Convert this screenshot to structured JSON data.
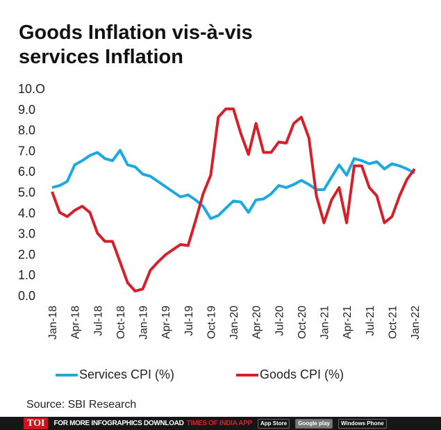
{
  "title": "Goods Inflation vis-à-vis services Inflation",
  "source": "Source: SBI Research",
  "footer": {
    "logo": "TOI",
    "text": "FOR MORE  INFOGRAPHICS DOWNLOAD",
    "app": "TIMES OF INDIA  APP",
    "badges": [
      "App Store",
      "Google play",
      "Windows Phone"
    ]
  },
  "chart_data": {
    "type": "line",
    "title": "Goods Inflation vis-à-vis services Inflation",
    "ylim": [
      0,
      10
    ],
    "yticks": [
      "0.0",
      "1.0",
      "2.0",
      "3.0",
      "4.0",
      "5.0",
      "6.0",
      "7.0",
      "8.0",
      "9.0",
      "10.O"
    ],
    "xtick_labels": [
      "Jan-18",
      "Apr-18",
      "Jul-18",
      "Oct-18",
      "Jan-19",
      "Apr-19",
      "Jul-19",
      "Oct-19",
      "Jan-20",
      "Apr-20",
      "Jul-20",
      "Oct-20",
      "Jan-21",
      "Apr-21",
      "Jul-21",
      "Oct-21",
      "Jan-22"
    ],
    "x_range": [
      "Jan-18",
      "Jan-22"
    ],
    "grid": false,
    "legend": "bottom",
    "colors": {
      "services": "#1ba9e1",
      "goods": "#d71f2a"
    },
    "series": [
      {
        "name": "Services CPI (%)",
        "values": [
          5.2,
          5.3,
          5.5,
          6.3,
          6.5,
          6.75,
          6.9,
          6.6,
          6.5,
          7.0,
          6.3,
          6.2,
          5.85,
          5.75,
          5.5,
          5.25,
          5.0,
          4.75,
          4.85,
          4.6,
          4.3,
          3.7,
          3.85,
          4.2,
          4.55,
          4.5,
          4.0,
          4.6,
          4.65,
          4.9,
          5.3,
          5.2,
          5.35,
          5.55,
          5.35,
          5.1,
          5.1,
          5.7,
          6.3,
          5.8,
          6.6,
          6.5,
          6.35,
          6.45,
          6.1,
          6.35,
          6.25,
          6.1,
          5.9
        ]
      },
      {
        "name": "Goods CPI (%)",
        "values": [
          5.0,
          4.0,
          3.8,
          4.1,
          4.3,
          4.0,
          3.0,
          2.6,
          2.6,
          1.6,
          0.6,
          0.2,
          0.3,
          1.2,
          1.6,
          1.95,
          2.2,
          2.45,
          2.4,
          3.6,
          4.9,
          5.8,
          8.6,
          9.0,
          9.0,
          7.8,
          6.8,
          8.3,
          6.9,
          6.9,
          7.4,
          7.35,
          8.3,
          8.6,
          7.6,
          4.8,
          3.5,
          4.6,
          5.2,
          3.5,
          6.25,
          6.25,
          5.2,
          4.8,
          3.5,
          3.8,
          4.8,
          5.6,
          6.1
        ]
      }
    ]
  }
}
